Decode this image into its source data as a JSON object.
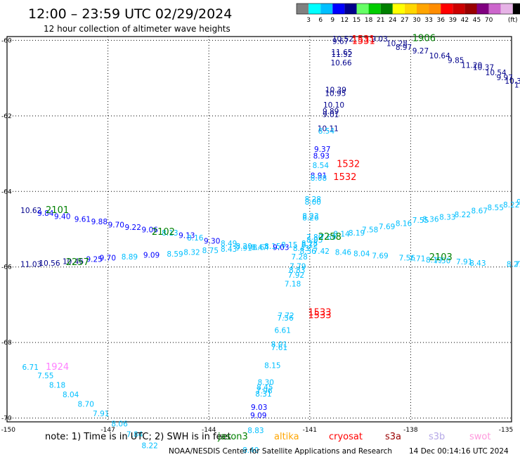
{
  "header": {
    "title": "12:00 – 23:59 UTC 02/29/2024",
    "subtitle": "12 hour collection of altimeter wave heights"
  },
  "color_scale": {
    "unit": "(ft)",
    "ticks": [
      "3",
      "6",
      "9",
      "12",
      "15",
      "18",
      "21",
      "24",
      "27",
      "30",
      "33",
      "36",
      "39",
      "42",
      "45",
      "70"
    ],
    "colors": [
      "#808080",
      "#00ffff",
      "#00bfff",
      "#0000ff",
      "#00008b",
      "#66ff66",
      "#00cc00",
      "#008000",
      "#ffff00",
      "#ffd700",
      "#ffa500",
      "#ff8c00",
      "#ff0000",
      "#cc0000",
      "#990000",
      "#800080",
      "#cc66cc",
      "#e6b3e6",
      "#000000"
    ]
  },
  "footer": {
    "note": "note: 1) Time is in UTC; 2) SWH is in feet",
    "credit": "NOAA/NESDIS Center for Satellite Applications and Research",
    "generated": "14 Dec 00:14:16 UTC 2024",
    "satellites": [
      {
        "name": "jason3",
        "color": "#008000"
      },
      {
        "name": "altika",
        "color": "#ffa500"
      },
      {
        "name": "cryosat",
        "color": "#ff0000"
      },
      {
        "name": "s3a",
        "color": "#990000"
      },
      {
        "name": "s3b",
        "color": "#b4a7e6"
      },
      {
        "name": "swot",
        "color": "#ff99dd"
      }
    ]
  },
  "chart_data": {
    "type": "scatter",
    "x_ticks": [
      "-150",
      "-147",
      "-144",
      "-141",
      "-138",
      "-135"
    ],
    "y_ticks": [
      "-60",
      "-62",
      "-64",
      "-66",
      "-68",
      "-70"
    ],
    "xlim": [
      -150,
      -135
    ],
    "ylim": [
      -70.1,
      -59.9
    ],
    "grid": true,
    "colors": {
      "3-6": "#00bfff",
      "6-9": "#0000ff",
      "9-12": "#00008b"
    },
    "labels": [
      {
        "lon": -140.33,
        "lat": -60.03,
        "text": "10.52",
        "color": "#00008b"
      },
      {
        "lon": -140.33,
        "lat": -60.1,
        "text": "9.67",
        "color": "#00008b"
      },
      {
        "lon": -140.36,
        "lat": -60.38,
        "text": "11.65",
        "color": "#00008b"
      },
      {
        "lon": -140.36,
        "lat": -60.44,
        "text": "11.52",
        "color": "#00008b"
      },
      {
        "lon": -140.38,
        "lat": -60.66,
        "text": "10.66",
        "color": "#00008b"
      },
      {
        "lon": -139.17,
        "lat": -60.03,
        "text": "9.03",
        "color": "#00008b"
      },
      {
        "lon": -138.72,
        "lat": -60.15,
        "text": "10.28",
        "color": "#00008b"
      },
      {
        "lon": -138.45,
        "lat": -60.25,
        "text": "8.97",
        "color": "#00008b"
      },
      {
        "lon": -137.95,
        "lat": -60.35,
        "text": "9.27",
        "color": "#00008b"
      },
      {
        "lon": -137.45,
        "lat": -60.48,
        "text": "10.64",
        "color": "#00008b"
      },
      {
        "lon": -136.9,
        "lat": -60.6,
        "text": "9.85",
        "color": "#00008b"
      },
      {
        "lon": -136.5,
        "lat": -60.73,
        "text": "11.20",
        "color": "#00008b"
      },
      {
        "lon": -136.15,
        "lat": -60.78,
        "text": "10.37",
        "color": "#00008b"
      },
      {
        "lon": -135.78,
        "lat": -60.92,
        "text": "10.54",
        "color": "#00008b"
      },
      {
        "lon": -135.45,
        "lat": -61.05,
        "text": "9.97",
        "color": "#00008b"
      },
      {
        "lon": -135.2,
        "lat": -61.15,
        "text": "10.36",
        "color": "#00008b"
      },
      {
        "lon": -134.92,
        "lat": -61.25,
        "text": "11.2",
        "color": "#00008b"
      },
      {
        "lon": -140.54,
        "lat": -61.38,
        "text": "10.39",
        "color": "#00008b"
      },
      {
        "lon": -140.55,
        "lat": -61.47,
        "text": "10.95",
        "color": "#00008b"
      },
      {
        "lon": -140.6,
        "lat": -61.78,
        "text": "10.10",
        "color": "#00008b"
      },
      {
        "lon": -140.62,
        "lat": -61.95,
        "text": "9.89",
        "color": "#00008b"
      },
      {
        "lon": -140.62,
        "lat": -62.03,
        "text": "9.01",
        "color": "#00008b"
      },
      {
        "lon": -140.77,
        "lat": -62.4,
        "text": "10.11",
        "color": "#00008b"
      },
      {
        "lon": -140.75,
        "lat": -62.47,
        "text": "8.54",
        "color": "#00bfff"
      },
      {
        "lon": -140.87,
        "lat": -62.95,
        "text": "9.37",
        "color": "#0000ff"
      },
      {
        "lon": -140.9,
        "lat": -63.13,
        "text": "8.93",
        "color": "#0000ff"
      },
      {
        "lon": -140.92,
        "lat": -63.38,
        "text": "8.54",
        "color": "#00bfff"
      },
      {
        "lon": -140.98,
        "lat": -63.65,
        "text": "8.91",
        "color": "#0000ff"
      },
      {
        "lon": -140.98,
        "lat": -63.72,
        "text": "8.08",
        "color": "#00bfff"
      },
      {
        "lon": -141.15,
        "lat": -64.27,
        "text": "8.28",
        "color": "#00bfff"
      },
      {
        "lon": -141.15,
        "lat": -64.35,
        "text": "8.00",
        "color": "#00bfff"
      },
      {
        "lon": -141.22,
        "lat": -64.72,
        "text": "8.23",
        "color": "#00bfff"
      },
      {
        "lon": -141.22,
        "lat": -64.77,
        "text": "8.26",
        "color": "#00bfff"
      },
      {
        "lon": -149.6,
        "lat": -64.57,
        "text": "10.62",
        "color": "#00008b"
      },
      {
        "lon": -149.1,
        "lat": -64.65,
        "text": "9.84",
        "color": "#0000ff"
      },
      {
        "lon": -148.6,
        "lat": -64.73,
        "text": "9.40",
        "color": "#0000ff"
      },
      {
        "lon": -148.0,
        "lat": -64.8,
        "text": "9.61",
        "color": "#0000ff"
      },
      {
        "lon": -147.5,
        "lat": -64.87,
        "text": "9.88",
        "color": "#0000ff"
      },
      {
        "lon": -147.0,
        "lat": -64.95,
        "text": "9.70",
        "color": "#0000ff"
      },
      {
        "lon": -146.5,
        "lat": -65.02,
        "text": "9.22",
        "color": "#0000ff"
      },
      {
        "lon": -146.0,
        "lat": -65.08,
        "text": "9.06",
        "color": "#0000ff"
      },
      {
        "lon": -145.4,
        "lat": -65.17,
        "text": "8.13",
        "color": "#00bfff"
      },
      {
        "lon": -144.9,
        "lat": -65.23,
        "text": "9.13",
        "color": "#0000ff"
      },
      {
        "lon": -144.65,
        "lat": -65.3,
        "text": "8.16",
        "color": "#00bfff"
      },
      {
        "lon": -144.15,
        "lat": -65.38,
        "text": "9.30",
        "color": "#0000ff"
      },
      {
        "lon": -143.65,
        "lat": -65.45,
        "text": "8.49",
        "color": "#00bfff"
      },
      {
        "lon": -143.2,
        "lat": -65.52,
        "text": "8.20",
        "color": "#00bfff"
      },
      {
        "lon": -142.75,
        "lat": -65.55,
        "text": "8.47",
        "color": "#00bfff"
      },
      {
        "lon": -142.35,
        "lat": -65.52,
        "text": "8.15",
        "color": "#00bfff"
      },
      {
        "lon": -141.85,
        "lat": -65.48,
        "text": "8.15",
        "color": "#00bfff"
      },
      {
        "lon": -141.1,
        "lat": -65.28,
        "text": "7.80",
        "color": "#00bfff"
      },
      {
        "lon": -141.1,
        "lat": -65.35,
        "text": "8.05",
        "color": "#00bfff"
      },
      {
        "lon": -140.7,
        "lat": -65.28,
        "text": "7.69",
        "color": "#00bfff"
      },
      {
        "lon": -140.3,
        "lat": -65.2,
        "text": "8.14",
        "color": "#00bfff"
      },
      {
        "lon": -139.85,
        "lat": -65.17,
        "text": "8.19",
        "color": "#00bfff"
      },
      {
        "lon": -139.45,
        "lat": -65.08,
        "text": "7.58",
        "color": "#00bfff"
      },
      {
        "lon": -138.95,
        "lat": -65.0,
        "text": "7.69",
        "color": "#00bfff"
      },
      {
        "lon": -138.45,
        "lat": -64.92,
        "text": "8.16",
        "color": "#00bfff"
      },
      {
        "lon": -137.95,
        "lat": -64.83,
        "text": "7.55",
        "color": "#00bfff"
      },
      {
        "lon": -137.65,
        "lat": -64.8,
        "text": "8.36",
        "color": "#00bfff"
      },
      {
        "lon": -137.15,
        "lat": -64.75,
        "text": "8.33",
        "color": "#00bfff"
      },
      {
        "lon": -136.7,
        "lat": -64.68,
        "text": "8.22",
        "color": "#00bfff"
      },
      {
        "lon": -136.2,
        "lat": -64.58,
        "text": "8.67",
        "color": "#00bfff"
      },
      {
        "lon": -135.72,
        "lat": -64.5,
        "text": "8.55",
        "color": "#00bfff"
      },
      {
        "lon": -135.25,
        "lat": -64.42,
        "text": "8.22",
        "color": "#00bfff"
      },
      {
        "lon": -134.85,
        "lat": -64.35,
        "text": "9.0",
        "color": "#00bfff"
      },
      {
        "lon": -149.6,
        "lat": -66.0,
        "text": "11.03",
        "color": "#00008b"
      },
      {
        "lon": -149.05,
        "lat": -65.97,
        "text": "10.56",
        "color": "#00008b"
      },
      {
        "lon": -148.35,
        "lat": -65.92,
        "text": "10.46",
        "color": "#00008b"
      },
      {
        "lon": -147.65,
        "lat": -65.87,
        "text": "9.25",
        "color": "#0000ff"
      },
      {
        "lon": -147.25,
        "lat": -65.83,
        "text": "9.70",
        "color": "#0000ff"
      },
      {
        "lon": -146.6,
        "lat": -65.8,
        "text": "8.89",
        "color": "#00bfff"
      },
      {
        "lon": -145.95,
        "lat": -65.75,
        "text": "9.09",
        "color": "#0000ff"
      },
      {
        "lon": -145.25,
        "lat": -65.73,
        "text": "8.59",
        "color": "#00bfff"
      },
      {
        "lon": -144.75,
        "lat": -65.68,
        "text": "8.32",
        "color": "#00bfff"
      },
      {
        "lon": -144.2,
        "lat": -65.63,
        "text": "8.75",
        "color": "#00bfff"
      },
      {
        "lon": -143.65,
        "lat": -65.6,
        "text": "8.43",
        "color": "#00bfff"
      },
      {
        "lon": -143.2,
        "lat": -65.57,
        "text": "7.91",
        "color": "#00bfff"
      },
      {
        "lon": -142.7,
        "lat": -65.55,
        "text": "8.64",
        "color": "#00bfff"
      },
      {
        "lon": -142.1,
        "lat": -65.55,
        "text": "9.03",
        "color": "#0000ff"
      },
      {
        "lon": -141.5,
        "lat": -65.58,
        "text": "8.43",
        "color": "#00bfff"
      },
      {
        "lon": -141.3,
        "lat": -65.65,
        "text": "8.36",
        "color": "#00bfff"
      },
      {
        "lon": -141.25,
        "lat": -65.48,
        "text": "8.12",
        "color": "#00bfff"
      },
      {
        "lon": -141.25,
        "lat": -65.45,
        "text": "8.28",
        "color": "#00bfff"
      },
      {
        "lon": -140.9,
        "lat": -65.65,
        "text": "7.42",
        "color": "#00bfff"
      },
      {
        "lon": -141.55,
        "lat": -65.8,
        "text": "7.28",
        "color": "#00bfff"
      },
      {
        "lon": -140.25,
        "lat": -65.68,
        "text": "8.46",
        "color": "#00bfff"
      },
      {
        "lon": -139.7,
        "lat": -65.72,
        "text": "8.04",
        "color": "#00bfff"
      },
      {
        "lon": -139.15,
        "lat": -65.77,
        "text": "7.69",
        "color": "#00bfff"
      },
      {
        "lon": -138.35,
        "lat": -65.83,
        "text": "7.56",
        "color": "#00bfff"
      },
      {
        "lon": -138.05,
        "lat": -65.85,
        "text": "7.71",
        "color": "#00bfff"
      },
      {
        "lon": -137.55,
        "lat": -65.88,
        "text": "8.19",
        "color": "#00bfff"
      },
      {
        "lon": -137.3,
        "lat": -65.9,
        "text": "7.50",
        "color": "#00bfff"
      },
      {
        "lon": -136.65,
        "lat": -65.93,
        "text": "7.91",
        "color": "#00bfff"
      },
      {
        "lon": -136.25,
        "lat": -65.97,
        "text": "8.43",
        "color": "#00bfff"
      },
      {
        "lon": -135.15,
        "lat": -66.0,
        "text": "8.27",
        "color": "#00bfff"
      },
      {
        "lon": -134.9,
        "lat": -66.0,
        "text": "7.58",
        "color": "#00bfff"
      },
      {
        "lon": -141.6,
        "lat": -66.05,
        "text": "7.79",
        "color": "#00bfff"
      },
      {
        "lon": -141.62,
        "lat": -66.15,
        "text": "8.83",
        "color": "#00bfff"
      },
      {
        "lon": -141.65,
        "lat": -66.28,
        "text": "7.92",
        "color": "#00bfff"
      },
      {
        "lon": -141.75,
        "lat": -66.52,
        "text": "7.18",
        "color": "#00bfff"
      },
      {
        "lon": -141.95,
        "lat": -67.35,
        "text": "7.72",
        "color": "#00bfff"
      },
      {
        "lon": -141.97,
        "lat": -67.42,
        "text": "7.56",
        "color": "#00bfff"
      },
      {
        "lon": -142.05,
        "lat": -67.75,
        "text": "6.61",
        "color": "#00bfff"
      },
      {
        "lon": -142.15,
        "lat": -68.12,
        "text": "8.01",
        "color": "#00bfff"
      },
      {
        "lon": -142.15,
        "lat": -68.2,
        "text": "7.61",
        "color": "#00bfff"
      },
      {
        "lon": -142.35,
        "lat": -68.68,
        "text": "8.15",
        "color": "#00bfff"
      },
      {
        "lon": -142.55,
        "lat": -69.12,
        "text": "8.30",
        "color": "#00bfff"
      },
      {
        "lon": -142.58,
        "lat": -69.25,
        "text": "8.45",
        "color": "#00bfff"
      },
      {
        "lon": -142.6,
        "lat": -69.35,
        "text": "7.96",
        "color": "#00bfff"
      },
      {
        "lon": -142.62,
        "lat": -69.43,
        "text": "8.31",
        "color": "#00bfff"
      },
      {
        "lon": -142.75,
        "lat": -69.78,
        "text": "9.03",
        "color": "#0000ff"
      },
      {
        "lon": -142.77,
        "lat": -70.0,
        "text": "9.09",
        "color": "#0000ff"
      },
      {
        "lon": -142.85,
        "lat": -70.4,
        "text": "8.83",
        "color": "#00bfff"
      },
      {
        "lon": -143.0,
        "lat": -70.92,
        "text": "8.40",
        "color": "#00bfff"
      },
      {
        "lon": -149.55,
        "lat": -68.72,
        "text": "6.71",
        "color": "#00bfff"
      },
      {
        "lon": -149.1,
        "lat": -68.95,
        "text": "7.55",
        "color": "#00bfff"
      },
      {
        "lon": -148.75,
        "lat": -69.2,
        "text": "8.18",
        "color": "#00bfff"
      },
      {
        "lon": -148.35,
        "lat": -69.45,
        "text": "8.04",
        "color": "#00bfff"
      },
      {
        "lon": -147.9,
        "lat": -69.7,
        "text": "8.70",
        "color": "#00bfff"
      },
      {
        "lon": -147.45,
        "lat": -69.95,
        "text": "7.91",
        "color": "#00bfff"
      },
      {
        "lon": -146.9,
        "lat": -70.22,
        "text": "8.06",
        "color": "#00bfff"
      },
      {
        "lon": -146.45,
        "lat": -70.5,
        "text": "7.84",
        "color": "#00bfff"
      },
      {
        "lon": -146.0,
        "lat": -70.8,
        "text": "8.22",
        "color": "#00bfff"
      }
    ],
    "time_labels": [
      {
        "lon": -139.75,
        "lat": -60.05,
        "text": "1531",
        "color": "#ff0000"
      },
      {
        "lon": -139.75,
        "lat": -60.1,
        "text": "1531",
        "color": "#ff0000"
      },
      {
        "lon": -137.95,
        "lat": -60.02,
        "text": "1906",
        "color": "#008000"
      },
      {
        "lon": -140.2,
        "lat": -63.35,
        "text": "1532",
        "color": "#ff0000"
      },
      {
        "lon": -140.3,
        "lat": -63.7,
        "text": "1532",
        "color": "#ff0000"
      },
      {
        "lon": -148.85,
        "lat": -64.57,
        "text": "2101",
        "color": "#008000"
      },
      {
        "lon": -145.7,
        "lat": -65.15,
        "text": "2102",
        "color": "#008000"
      },
      {
        "lon": -140.75,
        "lat": -65.28,
        "text": "2258",
        "color": "#008000"
      },
      {
        "lon": -137.45,
        "lat": -65.82,
        "text": "2103",
        "color": "#008000"
      },
      {
        "lon": -148.25,
        "lat": -65.95,
        "text": "2257",
        "color": "#008000"
      },
      {
        "lon": -141.05,
        "lat": -67.28,
        "text": "1533",
        "color": "#ff0000"
      },
      {
        "lon": -141.05,
        "lat": -67.35,
        "text": "1533",
        "color": "#ff0000"
      },
      {
        "lon": -148.85,
        "lat": -68.72,
        "text": "1924",
        "color": "#ff80ff"
      }
    ]
  }
}
